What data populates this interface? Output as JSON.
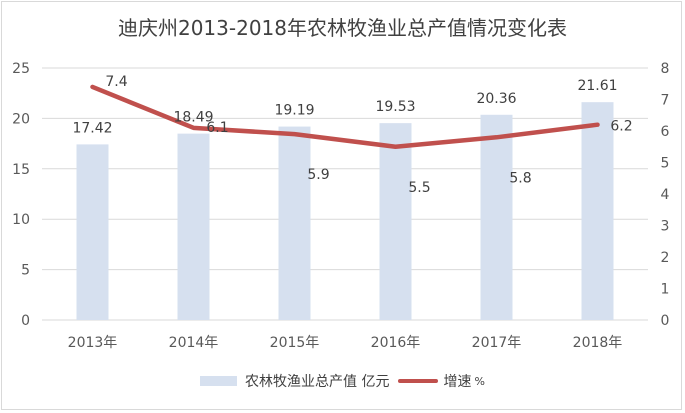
{
  "title": "迪庆州2013-2018年农林牧渔业总产值情况变化表",
  "legend": {
    "bar_label": "农林牧渔业总产值 亿元",
    "line_label": "增速",
    "line_unit": "%"
  },
  "colors": {
    "bar": "#d6e0ef",
    "line": "#c0504d",
    "grid": "#d9d9d9",
    "text": "#595959"
  },
  "chart_data": {
    "type": "bar",
    "title": "迪庆州2013-2018年农林牧渔业总产值情况变化表",
    "categories": [
      "2013年",
      "2014年",
      "2015年",
      "2016年",
      "2017年",
      "2018年"
    ],
    "series": [
      {
        "name": "农林牧渔业总产值 亿元",
        "type": "bar",
        "axis": "left",
        "values": [
          17.42,
          18.49,
          19.19,
          19.53,
          20.36,
          21.61
        ]
      },
      {
        "name": "增速 %",
        "type": "line",
        "axis": "right",
        "values": [
          7.4,
          6.1,
          5.9,
          5.5,
          5.8,
          6.2
        ]
      }
    ],
    "ylim_left": [
      0,
      25
    ],
    "yticks_left": [
      0,
      5,
      10,
      15,
      20,
      25
    ],
    "ylim_right": [
      0,
      8
    ],
    "yticks_right": [
      0,
      1,
      2,
      3,
      4,
      5,
      6,
      7,
      8
    ],
    "grid": true,
    "legend_position": "bottom"
  }
}
